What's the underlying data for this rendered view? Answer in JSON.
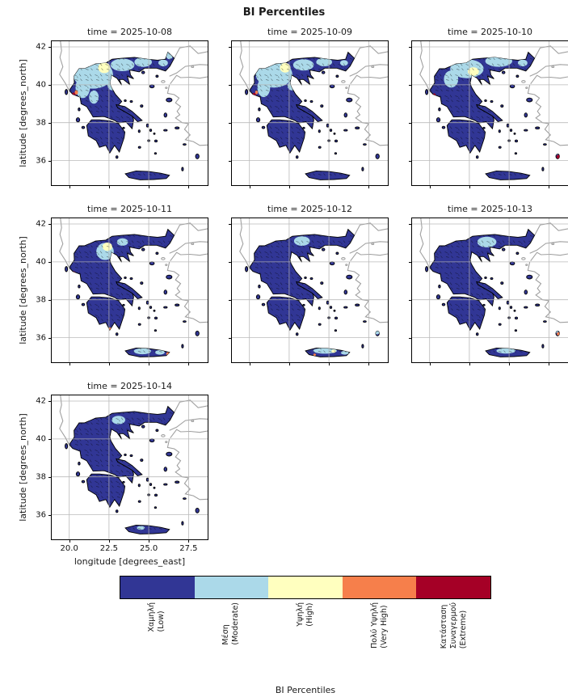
{
  "figure": {
    "title": "BI Percentiles",
    "xlabel": "longitude [degrees_east]",
    "ylabel": "latitude [degrees_north]",
    "colorbar_label": "BI Percentiles"
  },
  "chart_data": {
    "type": "heatmap",
    "subtype": "categorical fire-danger (BI percentile) maps of Greece, faceted by day",
    "title": "BI Percentiles",
    "region": "Greece",
    "xlabel": "longitude [degrees_east]",
    "ylabel": "latitude [degrees_north]",
    "xlim": [
      18.9,
      28.7
    ],
    "ylim": [
      34.7,
      42.3
    ],
    "xticks": [
      "20.0",
      "22.5",
      "25.0",
      "27.5"
    ],
    "xtick_values": [
      20.0,
      22.5,
      25.0,
      27.5
    ],
    "yticks": [
      "42",
      "40",
      "38",
      "36"
    ],
    "ytick_values": [
      42,
      40,
      38,
      36
    ],
    "grid": true,
    "land_outline_color": "#000000",
    "neighbor_coast_color": "#a0a0a0",
    "colorbar": {
      "label": "BI Percentiles",
      "orientation": "horizontal",
      "categories": [
        {
          "key": "low",
          "lines": [
            "Χαμηλή",
            "(Low)"
          ],
          "color": "#313695"
        },
        {
          "key": "moderate",
          "lines": [
            "Μέση",
            "(Moderate)"
          ],
          "color": "#abd9e9"
        },
        {
          "key": "high",
          "lines": [
            "Υψηλή",
            "(High)"
          ],
          "color": "#ffffbf"
        },
        {
          "key": "very_high",
          "lines": [
            "Πολύ Υψηλή",
            "(Very High)"
          ],
          "color": "#f67f4b"
        },
        {
          "key": "extreme",
          "lines": [
            "Κατάσταση",
            "Συναγερμού",
            "(Extreme)"
          ],
          "color": "#a50026"
        }
      ]
    },
    "facets": [
      {
        "title": "time = 2025-10-08",
        "dominant": "low",
        "summary": "Mostly Low; widespread Moderate patches over northern and northwestern Greece; small High area NW of Thessaloniki; isolated Very High / Extreme specks on the Epirus coast.",
        "patches": [
          [
            "moderate",
            21.5,
            40.55,
            1.25,
            0.75
          ],
          [
            "moderate",
            20.85,
            39.85,
            0.45,
            0.55
          ],
          [
            "moderate",
            23.35,
            41.05,
            0.75,
            0.33
          ],
          [
            "moderate",
            24.65,
            41.2,
            0.55,
            0.25
          ],
          [
            "moderate",
            22.75,
            40.0,
            0.35,
            0.3
          ],
          [
            "moderate",
            21.55,
            39.35,
            0.3,
            0.35
          ],
          [
            "moderate",
            25.9,
            41.15,
            0.3,
            0.18
          ],
          [
            "moderate",
            26.3,
            41.55,
            0.22,
            0.2
          ],
          [
            "high",
            22.2,
            40.9,
            0.38,
            0.28
          ],
          [
            "very_high",
            20.45,
            39.6,
            0.1,
            0.12
          ],
          [
            "extreme",
            20.28,
            39.4,
            0.12,
            0.2
          ],
          [
            "extreme",
            20.5,
            38.95,
            0.08,
            0.1
          ]
        ]
      },
      {
        "title": "time = 2025-10-09",
        "dominant": "low",
        "summary": "Mostly Low; Moderate patches across northern Greece; small High area near Thessaloniki; Extreme speck on Epirus coast.",
        "patches": [
          [
            "moderate",
            21.55,
            40.55,
            1.15,
            0.7
          ],
          [
            "moderate",
            23.4,
            41.05,
            0.65,
            0.3
          ],
          [
            "moderate",
            24.7,
            41.2,
            0.5,
            0.22
          ],
          [
            "moderate",
            20.9,
            39.85,
            0.4,
            0.5
          ],
          [
            "moderate",
            22.7,
            39.95,
            0.3,
            0.25
          ],
          [
            "moderate",
            25.95,
            41.15,
            0.25,
            0.15
          ],
          [
            "high",
            22.25,
            40.9,
            0.33,
            0.25
          ],
          [
            "very_high",
            20.45,
            39.6,
            0.08,
            0.1
          ],
          [
            "extreme",
            20.3,
            39.4,
            0.12,
            0.18
          ]
        ]
      },
      {
        "title": "time = 2025-10-10",
        "dominant": "low",
        "summary": "Mostly Low; Moderate band across central Macedonia and Thrace; small High area near Thessaloniki; Extreme specks on Epirus coast and Rhodes.",
        "patches": [
          [
            "moderate",
            22.35,
            40.85,
            1.05,
            0.5
          ],
          [
            "moderate",
            24.35,
            41.25,
            0.85,
            0.3
          ],
          [
            "moderate",
            21.35,
            40.3,
            0.45,
            0.45
          ],
          [
            "moderate",
            25.85,
            41.15,
            0.3,
            0.18
          ],
          [
            "moderate",
            27.9,
            36.4,
            0.18,
            0.12
          ],
          [
            "high",
            22.75,
            40.7,
            0.35,
            0.22
          ],
          [
            "extreme",
            20.3,
            39.4,
            0.1,
            0.15
          ],
          [
            "extreme",
            28.1,
            36.2,
            0.12,
            0.1
          ]
        ]
      },
      {
        "title": "time = 2025-10-11",
        "dominant": "low",
        "summary": "Mostly Low; shrinking Moderate patch in the north with a small High core; Moderate strip on Crete; Very High specks on SE Crete and south Peloponnese.",
        "patches": [
          [
            "moderate",
            22.25,
            40.55,
            0.55,
            0.45
          ],
          [
            "moderate",
            23.35,
            41.05,
            0.35,
            0.2
          ],
          [
            "moderate",
            24.6,
            35.28,
            0.55,
            0.16
          ],
          [
            "moderate",
            25.7,
            35.22,
            0.3,
            0.12
          ],
          [
            "high",
            22.4,
            40.8,
            0.3,
            0.22
          ],
          [
            "very_high",
            26.2,
            35.15,
            0.1,
            0.08
          ],
          [
            "very_high",
            22.55,
            36.45,
            0.09,
            0.09
          ],
          [
            "extreme",
            20.3,
            39.4,
            0.07,
            0.1
          ]
        ]
      },
      {
        "title": "time = 2025-10-12",
        "dominant": "low",
        "summary": "Mostly Low; small Moderate patch in eastern Macedonia; Moderate strip on Crete and Rhodes with tiny High / Very High specks on Crete.",
        "patches": [
          [
            "moderate",
            23.3,
            41.1,
            0.5,
            0.25
          ],
          [
            "moderate",
            24.75,
            35.3,
            0.75,
            0.15
          ],
          [
            "moderate",
            26.0,
            35.2,
            0.25,
            0.1
          ],
          [
            "moderate",
            28.0,
            36.3,
            0.2,
            0.13
          ],
          [
            "high",
            25.3,
            35.28,
            0.14,
            0.08
          ],
          [
            "very_high",
            24.1,
            35.1,
            0.08,
            0.06
          ]
        ]
      },
      {
        "title": "time = 2025-10-13",
        "dominant": "low",
        "summary": "Mostly Low; small Moderate patch in eastern Macedonia; Moderate strip on Crete; Very High speck on Rhodes.",
        "patches": [
          [
            "moderate",
            23.6,
            41.05,
            0.6,
            0.28
          ],
          [
            "moderate",
            24.8,
            35.3,
            0.6,
            0.14
          ],
          [
            "moderate",
            27.95,
            36.35,
            0.15,
            0.1
          ],
          [
            "very_high",
            28.1,
            36.2,
            0.1,
            0.08
          ]
        ]
      },
      {
        "title": "time = 2025-10-14",
        "dominant": "low",
        "summary": "Almost entirely Low; tiny Moderate remnants in eastern Macedonia and central Crete.",
        "patches": [
          [
            "moderate",
            23.1,
            41.0,
            0.42,
            0.22
          ],
          [
            "moderate",
            24.5,
            35.3,
            0.25,
            0.1
          ]
        ]
      }
    ]
  }
}
